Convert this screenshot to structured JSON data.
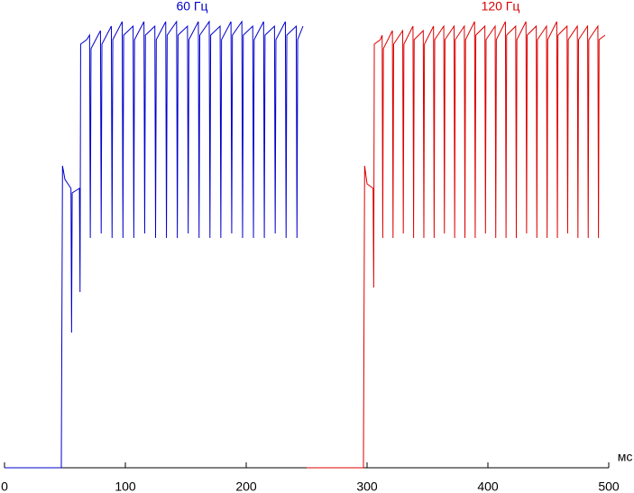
{
  "chart_data": {
    "type": "line",
    "x_label": "мс",
    "xlim": [
      0,
      500
    ],
    "xticks": [
      0,
      100,
      200,
      300,
      400,
      500
    ],
    "ylim": [
      0,
      100
    ],
    "series": [
      {
        "name": "60 Гц",
        "color": "#0000cc",
        "x": [
          0,
          47,
          48,
          50,
          55,
          55.5,
          56,
          62,
          62.5,
          63,
          68,
          70.4,
          71,
          71.6,
          79.4,
          80,
          80.6,
          88.4,
          89,
          89.6,
          97.4,
          98,
          98.6,
          106.4,
          107,
          107.6,
          115.4,
          116,
          116.6,
          124.4,
          125,
          125.6,
          133.4,
          134,
          134.6,
          142.4,
          143,
          143.6,
          151.4,
          152,
          152.6,
          160.4,
          161,
          161.6,
          169.4,
          170,
          170.6,
          178.4,
          179,
          179.6,
          187.4,
          188,
          188.6,
          196.4,
          197,
          197.6,
          205.4,
          206,
          206.6,
          214.4,
          215,
          215.6,
          223.4,
          224,
          224.6,
          232.4,
          233,
          233.6,
          241.4,
          242,
          242.6,
          247
        ],
        "values": [
          0,
          0,
          67,
          64,
          62,
          30,
          61,
          62,
          39,
          94,
          95,
          96,
          51,
          93,
          97,
          52,
          94,
          98,
          51,
          95,
          99,
          51,
          96,
          98,
          51,
          95,
          99,
          52,
          96,
          98,
          51,
          95,
          99,
          51,
          96,
          99,
          51,
          96,
          98,
          52,
          95,
          99,
          51,
          96,
          99,
          51,
          96,
          98,
          51,
          95,
          99,
          52,
          96,
          99,
          51,
          96,
          98,
          51,
          95,
          99,
          51,
          96,
          98,
          52,
          95,
          99,
          51,
          96,
          98,
          51,
          95,
          98
        ]
      },
      {
        "name": "120 Гц",
        "color": "#dd0000",
        "x": [
          250,
          297,
          298,
          300,
          305,
          305.5,
          306,
          311,
          312.5,
          313,
          313.5,
          321,
          321.5,
          322,
          329.5,
          330,
          330.5,
          338,
          338.5,
          339,
          346.5,
          347,
          347.5,
          355,
          355.5,
          356,
          363.5,
          364,
          364.5,
          372,
          372.5,
          373,
          380.5,
          381,
          381.5,
          389,
          389.5,
          390,
          397.5,
          398,
          398.5,
          406,
          406.5,
          407,
          414.5,
          415,
          415.5,
          423,
          423.5,
          424,
          431.5,
          432,
          432.5,
          440,
          440.5,
          441,
          448.5,
          449,
          449.5,
          457,
          457.5,
          458,
          465.5,
          466,
          466.5,
          474,
          474.5,
          475,
          482.5,
          483,
          483.5,
          491,
          491.5,
          492,
          497
        ],
        "values": [
          0,
          0,
          67,
          63,
          62,
          40,
          94,
          95,
          96,
          51,
          93,
          97,
          51,
          94,
          97,
          52,
          94,
          98,
          51,
          95,
          97,
          51,
          94,
          98,
          51,
          95,
          98,
          52,
          95,
          98,
          51,
          95,
          98,
          51,
          95,
          99,
          51,
          96,
          98,
          52,
          95,
          98,
          51,
          95,
          99,
          51,
          96,
          98,
          51,
          95,
          99,
          52,
          96,
          98,
          51,
          95,
          98,
          51,
          95,
          99,
          51,
          96,
          98,
          52,
          95,
          98,
          51,
          95,
          98,
          51,
          95,
          98,
          51,
          95,
          96
        ]
      }
    ]
  }
}
